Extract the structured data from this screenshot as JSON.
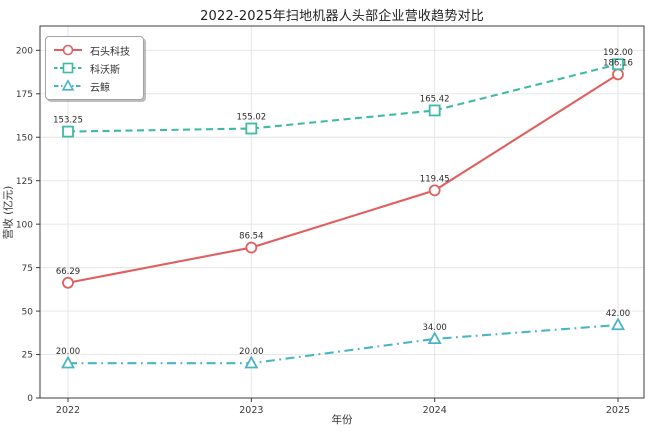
{
  "title": "2022-2025年扫地机器人头部企业营收趋势对比",
  "chart_data": {
    "type": "line",
    "categories": [
      "2022",
      "2023",
      "2024",
      "2025"
    ],
    "series": [
      {
        "name": "石头科技",
        "values": [
          66.29,
          86.54,
          119.45,
          186.16
        ],
        "labels": [
          "66.29",
          "86.54",
          "119.45",
          "186.16"
        ],
        "color": "#e06060",
        "linestyle": "solid",
        "marker": "circle"
      },
      {
        "name": "科沃斯",
        "values": [
          153.25,
          155.02,
          165.42,
          192.0
        ],
        "labels": [
          "153.25",
          "155.02",
          "165.42",
          "192.00"
        ],
        "color": "#3fb9a8",
        "linestyle": "dashed",
        "marker": "square"
      },
      {
        "name": "云鲸",
        "values": [
          20.0,
          20.0,
          34.0,
          42.0
        ],
        "labels": [
          "20.00",
          "20.00",
          "34.00",
          "42.00"
        ],
        "color": "#49b5c6",
        "linestyle": "dashdot",
        "marker": "triangle"
      }
    ],
    "xlabel": "年份",
    "ylabel": "营收 (亿元)",
    "yticks": [
      0,
      25,
      50,
      75,
      100,
      125,
      150,
      175,
      200
    ],
    "ylim": [
      0,
      214
    ],
    "grid": true,
    "legend_position": "upper left",
    "grid_color": "#e4e4e4",
    "axis_color": "#3c3c3c",
    "tick_label_color": "#3a3a3a",
    "data_label_color": "#2b2b2b"
  }
}
